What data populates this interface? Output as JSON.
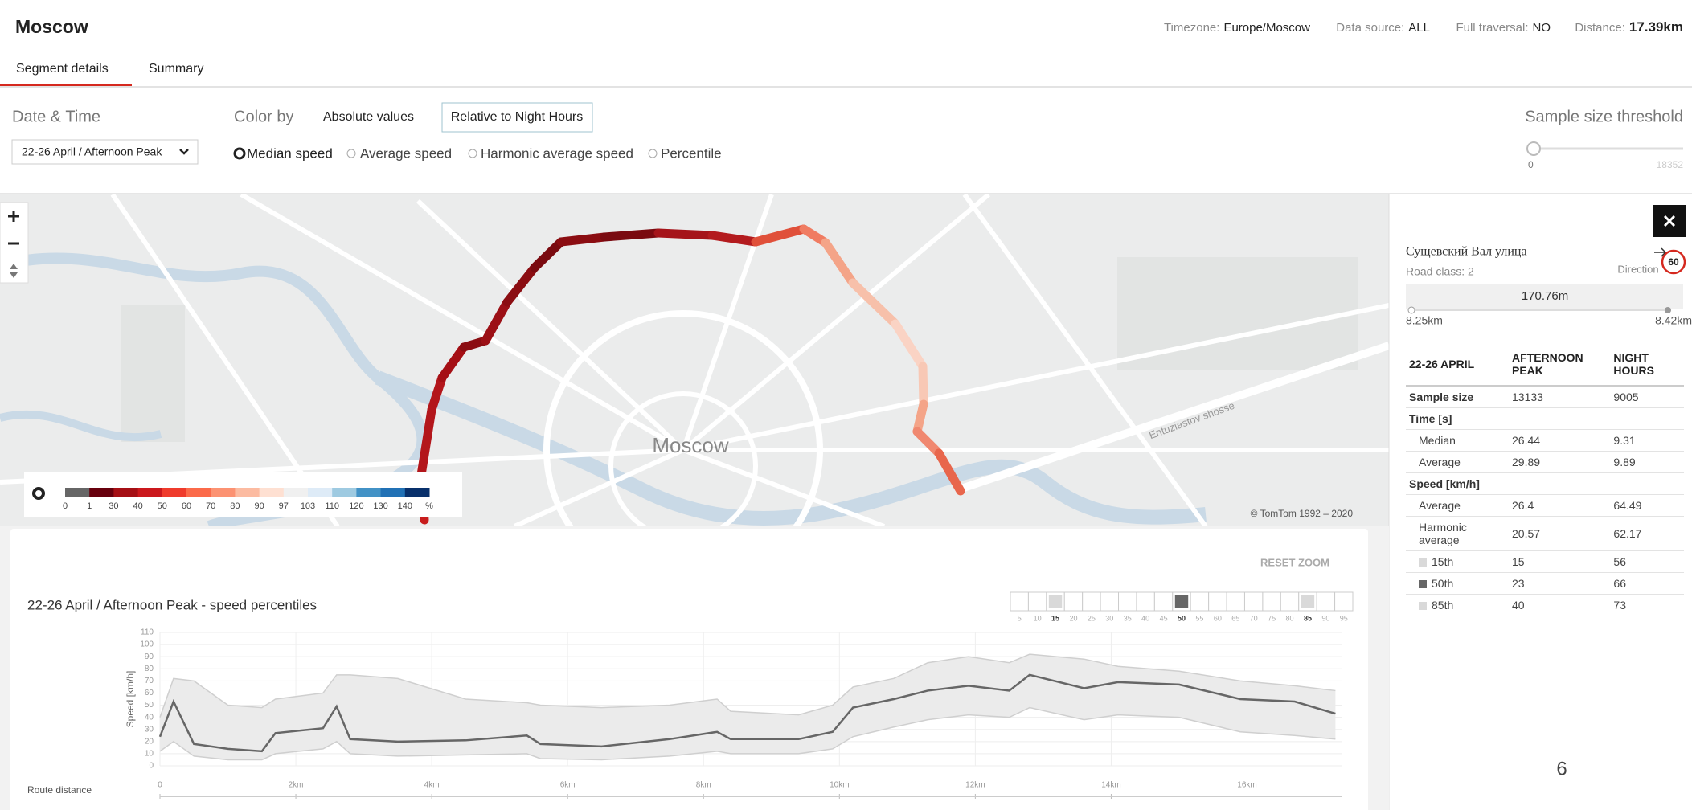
{
  "header": {
    "title": "Moscow",
    "info": [
      {
        "label": "Timezone:",
        "value": "Europe/Moscow"
      },
      {
        "label": "Data source:",
        "value": "ALL"
      },
      {
        "label": "Full traversal:",
        "value": "NO"
      },
      {
        "label": "Distance:",
        "value": "17.39km"
      }
    ]
  },
  "tabs": [
    "Segment details",
    "Summary"
  ],
  "controls": {
    "date_label": "Date & Time",
    "date_value": "22-26 April / Afternoon Peak",
    "color_by": "Color by",
    "color_modes": [
      "Absolute values",
      "Relative to Night Hours"
    ],
    "metrics": [
      "Median speed",
      "Average speed",
      "Harmonic average speed",
      "Percentile"
    ],
    "threshold_label": "Sample size threshold",
    "threshold_min": "0",
    "threshold_max": "18352"
  },
  "map": {
    "city": "Moscow",
    "road": "Entuziastov shosse",
    "copyright": "© TomTom 1992 – 2020",
    "legend": {
      "labels": [
        "0",
        "1",
        "30",
        "40",
        "50",
        "60",
        "70",
        "80",
        "90",
        "97",
        "103",
        "110",
        "120",
        "130",
        "140",
        "%"
      ],
      "colors": [
        "#666666",
        "#67000d",
        "#a50f15",
        "#cb181d",
        "#ef3b2c",
        "#fb6a4a",
        "#fc9272",
        "#fcbba1",
        "#fee0d2",
        "#f0f0f0",
        "#deebf7",
        "#9ecae1",
        "#4292c6",
        "#2171b5",
        "#08306b"
      ]
    }
  },
  "segment": {
    "name": "Сущевский Вал улица",
    "road_class": "Road class: 2",
    "direction": "Direction",
    "speed_limit": "60",
    "length": "170.76m",
    "start": "8.25km",
    "end": "8.42km"
  },
  "stats": {
    "header": [
      "22-26 APRIL",
      "AFTERNOON PEAK",
      "NIGHT HOURS"
    ],
    "rows": [
      {
        "cells": [
          "Sample size",
          "13133",
          "9005"
        ]
      },
      {
        "cells": [
          "Time [s]"
        ]
      },
      {
        "cells": [
          "Median",
          "26.44",
          "9.31"
        ]
      },
      {
        "cells": [
          "Average",
          "29.89",
          "9.89"
        ]
      },
      {
        "cells": [
          "Speed [km/h]"
        ]
      },
      {
        "cells": [
          "Average",
          "26.4",
          "64.49"
        ]
      },
      {
        "cells": [
          "Harmonic average",
          "20.57",
          "62.17"
        ]
      },
      {
        "cells": [
          "15th",
          "15",
          "56"
        ],
        "swatch": "#d9d9d9"
      },
      {
        "cells": [
          "50th",
          "23",
          "66"
        ],
        "swatch": "#666666"
      },
      {
        "cells": [
          "85th",
          "40",
          "73"
        ],
        "swatch": "#d9d9d9"
      }
    ]
  },
  "reset_zoom": "RESET ZOOM",
  "percentiles": {
    "options": [
      5,
      10,
      15,
      20,
      25,
      30,
      35,
      40,
      45,
      50,
      55,
      60,
      65,
      70,
      75,
      80,
      85,
      90,
      95
    ],
    "selected": [
      15,
      50,
      85
    ],
    "colors": [
      "#d9d9d9",
      "#666666",
      "#d9d9d9"
    ]
  },
  "chart_data": {
    "type": "line",
    "title": "22-26 April / Afternoon Peak - speed percentiles",
    "ylabel": "Speed [km/h]",
    "xlabel": "Route distance",
    "x": [
      0,
      0.2,
      0.5,
      1,
      1.5,
      1.7,
      2.4,
      2.6,
      2.8,
      3.5,
      4.5,
      5.4,
      5.6,
      6.5,
      7.5,
      8.2,
      8.4,
      9.4,
      9.9,
      10.2,
      10.8,
      11.3,
      11.9,
      12.5,
      12.8,
      13.6,
      14.1,
      15,
      15.9,
      16.7,
      17.3
    ],
    "series": [
      {
        "color": "#cfcfcf",
        "values": [
          12,
          20,
          8,
          5,
          5,
          10,
          14,
          20,
          10,
          8,
          9,
          10,
          6,
          5,
          8,
          12,
          10,
          10,
          14,
          24,
          32,
          38,
          42,
          40,
          48,
          38,
          42,
          40,
          28,
          25,
          22
        ]
      },
      {
        "color": "#666666",
        "values": [
          24,
          53,
          18,
          14,
          12,
          27,
          31,
          49,
          22,
          20,
          21,
          25,
          18,
          16,
          22,
          28,
          22,
          22,
          28,
          48,
          55,
          62,
          66,
          62,
          75,
          64,
          69,
          67,
          55,
          53,
          43
        ]
      },
      {
        "color": "#cfcfcf",
        "values": [
          40,
          72,
          70,
          50,
          48,
          55,
          60,
          75,
          75,
          72,
          55,
          52,
          50,
          48,
          50,
          55,
          45,
          42,
          50,
          65,
          72,
          85,
          90,
          85,
          92,
          88,
          82,
          78,
          70,
          66,
          62
        ]
      }
    ],
    "xlim": [
      0,
      17.39
    ],
    "ylim": [
      0,
      110
    ],
    "xticks": [
      0,
      {
        "value": 2,
        "label": "2km"
      },
      {
        "value": 4,
        "label": "4km"
      },
      {
        "value": 6,
        "label": "6km"
      },
      {
        "value": 8,
        "label": "8km"
      },
      {
        "value": 10,
        "label": "10km"
      },
      {
        "value": 12,
        "label": "12km"
      },
      {
        "value": 14,
        "label": "14km"
      },
      {
        "value": 16,
        "label": "16km"
      }
    ],
    "yticks": [
      0,
      10,
      20,
      30,
      40,
      50,
      60,
      70,
      80,
      90,
      100,
      110
    ],
    "grid": true
  },
  "page_number": "6"
}
